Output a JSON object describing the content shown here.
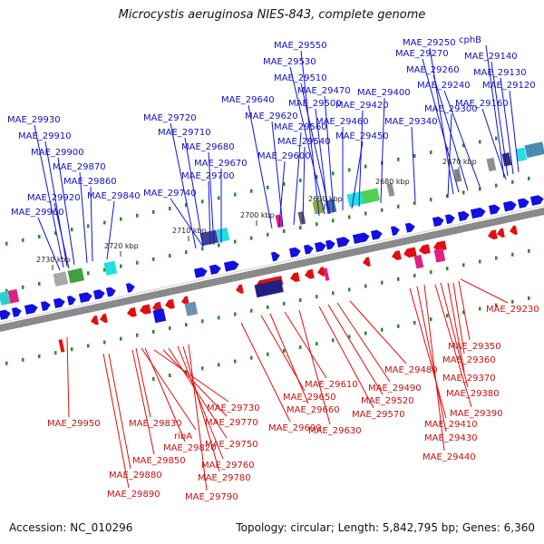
{
  "title": "Microcystis aeruginosa NIES-843, complete genome",
  "accession": "Accession: NC_010296",
  "topology": "Topology: circular; Length: 5,842,795 bp; Genes: 6,360",
  "colors": {
    "forward": "#1010e0",
    "reverse": "#e01010",
    "backbone": "#8a8a8a",
    "tick": "#2a8a2a"
  },
  "kbp_labels": [
    "2730 kbp",
    "2720 kbp",
    "2710 kbp",
    "2700 kbp",
    "2690 kbp",
    "2680 kbp",
    "2670 kbp"
  ],
  "top_labels": [
    "MAE_29930",
    "MAE_29910",
    "MAE_29900",
    "MAE_29870",
    "MAE_29860",
    "MAE_29840",
    "MAE_29920",
    "MAE_29960",
    "MAE_29720",
    "MAE_29710",
    "MAE_29680",
    "MAE_29670",
    "MAE_29700",
    "MAE_29740",
    "MAE_29640",
    "MAE_29620",
    "MAE_29560",
    "MAE_29540",
    "MAE_29600",
    "MAE_29550",
    "MAE_29530",
    "MAE_29510",
    "MAE_29470",
    "MAE_29500",
    "MAE_29460",
    "MAE_29450",
    "MAE_29420",
    "MAE_29400",
    "MAE_29340",
    "MAE_29300",
    "MAE_29250",
    "MAE_29270",
    "MAE_29260",
    "MAE_29240",
    "MAE_29160",
    "cphB",
    "MAE_29140",
    "MAE_29130",
    "MAE_29120"
  ],
  "bottom_labels": [
    "MAE_29950",
    "MAE_29830",
    "ribA",
    "MAE_29820",
    "MAE_29850",
    "MAE_29880",
    "MAE_29890",
    "MAE_29730",
    "MAE_29770",
    "MAE_29750",
    "MAE_29760",
    "MAE_29780",
    "MAE_29790",
    "MAE_29690",
    "MAE_29650",
    "MAE_29660",
    "MAE_29610",
    "MAE_29630",
    "MAE_29570",
    "MAE_29520",
    "MAE_29490",
    "MAE_29480",
    "MAE_29410",
    "MAE_29430",
    "MAE_29440",
    "MAE_29390",
    "MAE_29380",
    "MAE_29370",
    "MAE_29360",
    "MAE_29350",
    "MAE_29230"
  ]
}
